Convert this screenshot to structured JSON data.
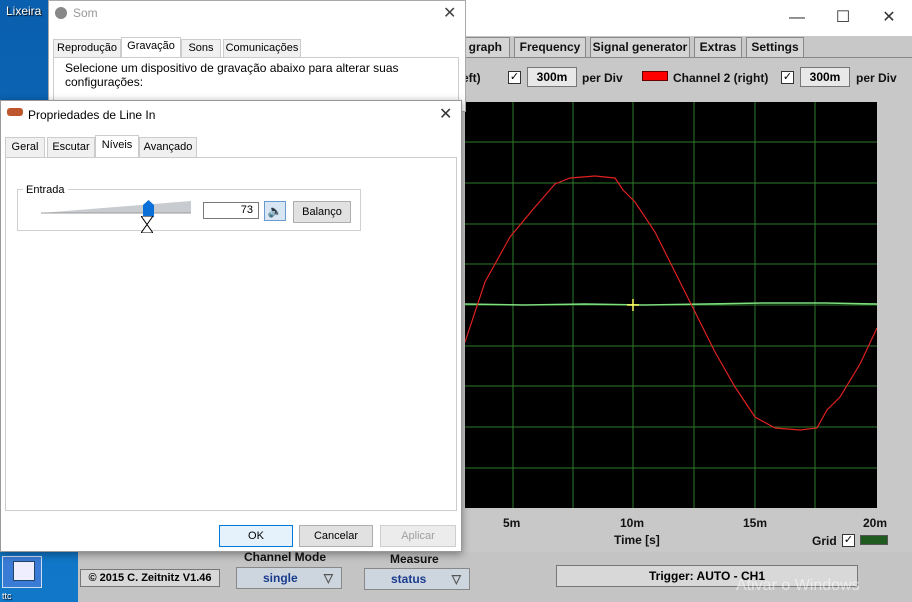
{
  "desktop": {
    "recycle_bin_label": "Lixeira",
    "bottom_left_label": "ttc"
  },
  "scope": {
    "tabs": [
      "/ graph",
      "Frequency",
      "Signal generator",
      "Extras",
      "Settings"
    ],
    "ch1_label_partial": "eft)",
    "ch1_per_div_value": "300m",
    "per_div_label": "per Div",
    "ch2_label": "Channel 2 (right)",
    "ch2_per_div_value": "300m",
    "ch2_color": "#ff0000",
    "plot_grid_color": "#2d7a2d",
    "ch1_color": "#7fe07f",
    "trace2_color": "#e02020",
    "x_tick_labels": [
      "5m",
      "10m",
      "15m",
      "20m"
    ],
    "x_axis_label": "Time [s]",
    "grid_label": "Grid",
    "copyright": "© 2015  C. Zeitnitz V1.46",
    "channel_mode_label": "Channel Mode",
    "channel_mode_value": "single",
    "measure_label": "Measure",
    "measure_value": "status",
    "trigger_text": "Trigger: AUTO - CH1",
    "watermark": "Ativar o Windows"
  },
  "som": {
    "title": "Som",
    "tabs": [
      "Reprodução",
      "Gravação",
      "Sons",
      "Comunicações"
    ],
    "instruction": "Selecione um dispositivo de gravação abaixo para alterar suas configurações:"
  },
  "props": {
    "title": "Propriedades de Line In",
    "tabs": [
      "Geral",
      "Escutar",
      "Níveis",
      "Avançado"
    ],
    "group_label": "Entrada",
    "level_value": "73",
    "level": 0.73,
    "balance_button": "Balanço",
    "ok_button": "OK",
    "cancel_button": "Cancelar",
    "apply_button": "Aplicar"
  }
}
